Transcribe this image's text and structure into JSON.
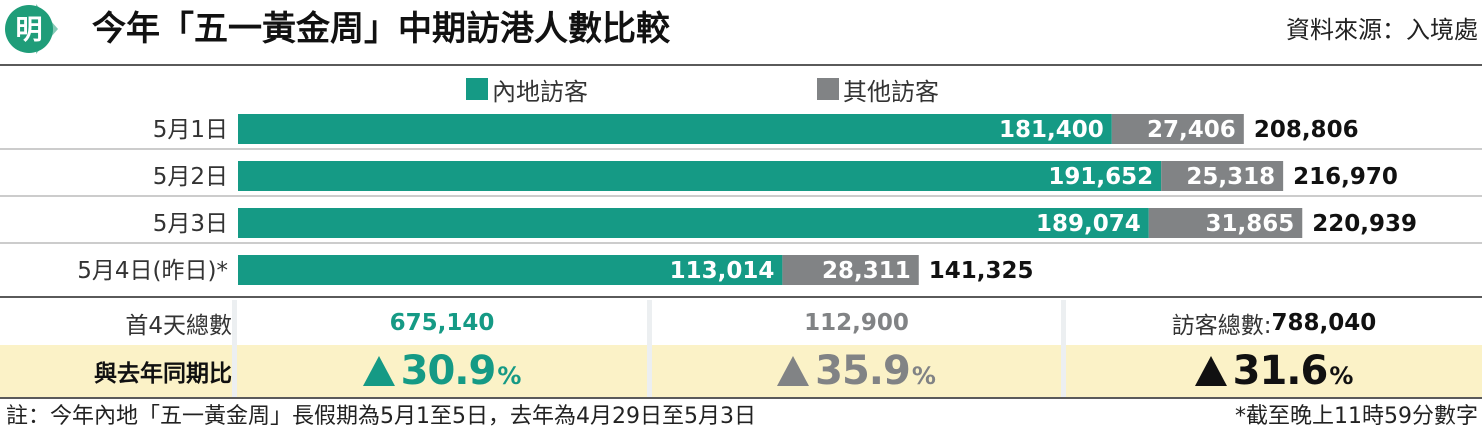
{
  "header": {
    "logo_char": "明",
    "title": "今年「五一黃金周」中期訪港人數比較",
    "source": "資料來源：入境處"
  },
  "colors": {
    "mainland": "#159a85",
    "other": "#818385",
    "logo": "#1f9d79",
    "highlight_row": "#fbf2c7"
  },
  "chart_data": {
    "type": "bar",
    "orientation": "horizontal",
    "stacked": true,
    "categories": [
      "5月1日",
      "5月2日",
      "5月3日",
      "5月4日(昨日)*"
    ],
    "series": [
      {
        "name": "內地訪客",
        "values": [
          181400,
          191652,
          189074,
          113014
        ],
        "labels": [
          "181,400",
          "191,652",
          "189,074",
          "113,014"
        ]
      },
      {
        "name": "其他訪客",
        "values": [
          27406,
          25318,
          31865,
          28311
        ],
        "labels": [
          "27,406",
          "25,318",
          "31,865",
          "28,311"
        ]
      }
    ],
    "totals": [
      208806,
      216970,
      220939,
      141325
    ],
    "total_labels": [
      "208,806",
      "216,970",
      "220,939",
      "141,325"
    ],
    "legend_position": "top"
  },
  "summary": {
    "totals_label": "首4天總數",
    "mainland_total": "675,140",
    "other_total": "112,900",
    "grand_total_label": "訪客總數:",
    "grand_total": "788,040",
    "compare_label": "與去年同期比",
    "mainland_change": "30.9",
    "other_change": "35.9",
    "grand_change": "31.6",
    "percent_sign": "%"
  },
  "footnote": "註：今年內地「五一黃金周」長假期為5月1至5日，去年為4月29日至5月3日",
  "footnote_cutoff": "*截至晚上11時59分數字"
}
